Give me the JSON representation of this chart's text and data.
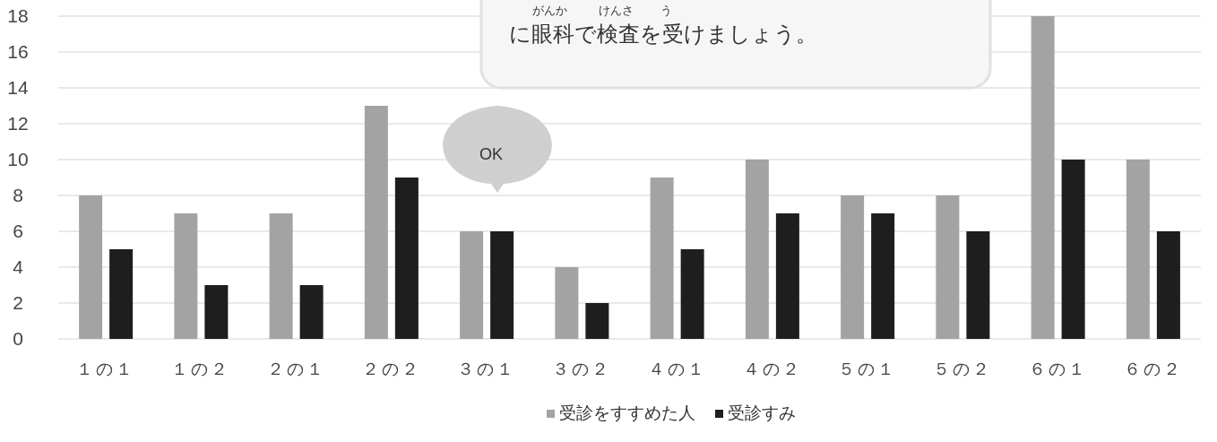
{
  "chart_data": {
    "type": "bar",
    "categories": [
      "１の１",
      "１の２",
      "２の１",
      "２の２",
      "３の１",
      "３の２",
      "４の１",
      "４の２",
      "５の１",
      "５の２",
      "６の１",
      "６の２"
    ],
    "series": [
      {
        "name": "受診をすすめた人",
        "color": "#a3a3a3",
        "values": [
          8,
          7,
          7,
          13,
          6,
          4,
          9,
          10,
          8,
          8,
          18,
          10
        ]
      },
      {
        "name": "受診すみ",
        "color": "#1e1e1e",
        "values": [
          5,
          3,
          3,
          9,
          6,
          2,
          5,
          7,
          7,
          6,
          10,
          6
        ]
      }
    ],
    "ylim": [
      0,
      18
    ],
    "yticks": [
      0,
      2,
      4,
      6,
      8,
      10,
      12,
      14,
      16,
      18
    ],
    "grid": "y",
    "legend": "bottom",
    "annotations": [
      "に眼科で検査を受けましょう。",
      "がんか",
      "けんさ",
      "う",
      "OK"
    ]
  }
}
